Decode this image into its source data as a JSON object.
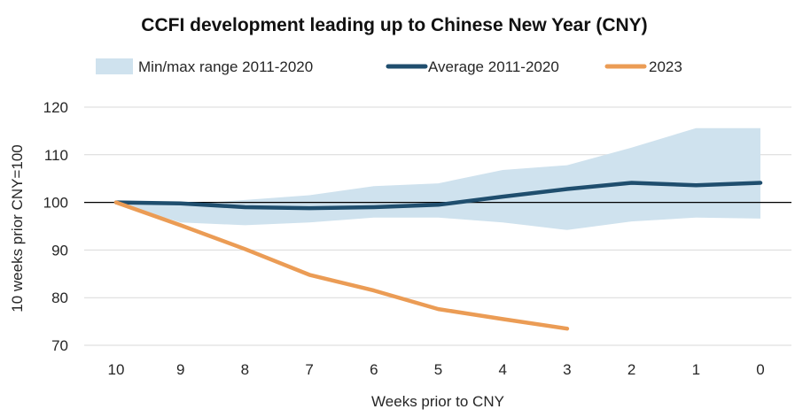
{
  "chart_data": {
    "type": "line",
    "title": "CCFI development leading up to Chinese New Year (CNY)",
    "xlabel": "Weeks prior to CNY",
    "ylabel": "10 weeks prior CNY=100",
    "categories": [
      "10",
      "9",
      "8",
      "7",
      "6",
      "5",
      "4",
      "3",
      "2",
      "1",
      "0"
    ],
    "ylim": [
      70,
      120
    ],
    "yticks": [
      "70",
      "80",
      "90",
      "100",
      "110",
      "120"
    ],
    "grid": true,
    "reference_line": 100,
    "legend_position": "top",
    "band": {
      "name": "Min/max range 2011-2020",
      "color": "#cfe2ee",
      "min": [
        100,
        95.8,
        95.2,
        95.8,
        96.8,
        96.8,
        95.8,
        94.2,
        96.0,
        96.8,
        96.6
      ],
      "max": [
        100,
        99.6,
        100.5,
        101.5,
        103.4,
        104.0,
        106.8,
        107.8,
        111.5,
        115.6,
        115.6
      ]
    },
    "series": [
      {
        "name": "Average 2011-2020",
        "color": "#1f4e6e",
        "values": [
          100,
          99.8,
          99.0,
          98.8,
          99.0,
          99.5,
          101.2,
          102.8,
          104.1,
          103.6,
          104.1
        ]
      },
      {
        "name": "2023",
        "color": "#eb9c55",
        "values": [
          100,
          95.2,
          90.2,
          84.8,
          81.5,
          77.6,
          75.5,
          73.5,
          null,
          null,
          null
        ]
      }
    ]
  }
}
